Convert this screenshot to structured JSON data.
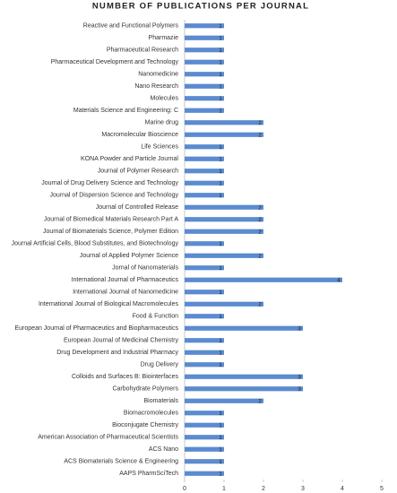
{
  "chart_data": {
    "type": "bar",
    "orientation": "horizontal",
    "title": "NUMBER OF PUBLICATIONS PER JOURNAL",
    "categories": [
      "Reactive and Functional Polymers",
      "Pharmazie",
      "Pharmaceutical Research",
      "Pharmaceutical Development and Technology",
      "Nanomedicine",
      "Nano Research",
      "Molecules",
      "Materials Science and Engineering: C",
      "Marine drug",
      "Macromolecular Bioscience",
      "Life Sciences",
      "KONA Powder and Particle Journal",
      "Journal of Polymer Research",
      "Journal of Drug Delivery Science and Technology",
      "Journal of Dispersion Science and Technology",
      "Journal of Controlled Release",
      "Journal of Biomedical Materials Research Part A",
      "Journal of Biomaterials Science, Polymer Edition",
      "Journal Artificial Cells, Blood Substitutes, and Biotechnology",
      "Journal of Applied Polymer Science",
      "Jornal of Nanomaterials",
      "International Journal of Pharmaceutics",
      "International Journal of Nanomedicine",
      "International Journal of Biological Macromolecules",
      "Food & Function",
      "European Journal of Pharmaceutics and Biopharmaceutics",
      "European Journal of Medicinal Chemistry",
      "Drug Development and Industrial Pharmacy",
      "Drug Delivery",
      "Colloids and Surfaces B: Biointerfaces",
      "Carbohydrate Polymers",
      "Biomaterials",
      "Biomacromolecules",
      "Bioconjugate Chemistry",
      "American Association of Pharmaceutical Scientists",
      "ACS Nano",
      "ACS Biomaterials Science & Engineering",
      "AAPS PharmSciTech"
    ],
    "values": [
      1,
      1,
      1,
      1,
      1,
      1,
      1,
      1,
      2,
      2,
      1,
      1,
      1,
      1,
      1,
      2,
      2,
      2,
      1,
      2,
      1,
      4,
      1,
      2,
      1,
      3,
      1,
      1,
      1,
      3,
      3,
      2,
      1,
      1,
      1,
      1,
      1,
      1
    ],
    "color": "#5b8bd0",
    "xlim": [
      0,
      5
    ],
    "xticks": [
      0,
      1,
      2,
      3,
      4,
      5
    ],
    "grid": false
  }
}
